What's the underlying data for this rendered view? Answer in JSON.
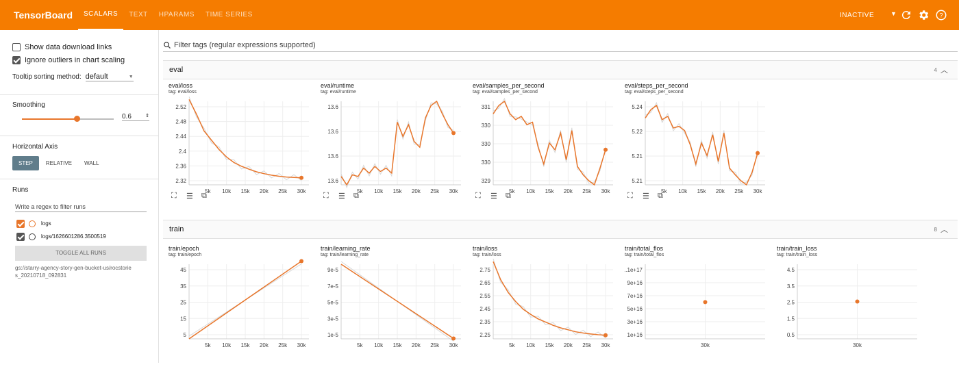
{
  "app": {
    "title": "TensorBoard",
    "status": "INACTIVE"
  },
  "tabs": [
    {
      "label": "SCALARS",
      "active": true
    },
    {
      "label": "TEXT",
      "active": false
    },
    {
      "label": "HPARAMS",
      "active": false
    },
    {
      "label": "TIME SERIES",
      "active": false
    }
  ],
  "sidebar": {
    "show_download": {
      "label": "Show data download links",
      "checked": false
    },
    "ignore_outliers": {
      "label": "Ignore outliers in chart scaling",
      "checked": true
    },
    "tooltip_label": "Tooltip sorting method:",
    "tooltip_value": "default",
    "smoothing_label": "Smoothing",
    "smoothing_value": "0.6",
    "smoothing_fraction": 0.6,
    "axis_label": "Horizontal Axis",
    "axis_options": [
      "STEP",
      "RELATIVE",
      "WALL"
    ],
    "axis_selected": "STEP",
    "runs_label": "Runs",
    "runs_filter_placeholder": "Write a regex to filter runs",
    "runs": [
      {
        "name": "logs",
        "checked": true,
        "color": "#e8762b"
      },
      {
        "name": "logs/1626601286.3500519",
        "checked": true,
        "color": "#424242"
      }
    ],
    "toggle_label": "TOGGLE ALL RUNS",
    "run_path": "gs://starry-agency-story-gen-bucket-us/rocstories_20210718_092831"
  },
  "main": {
    "filter_placeholder": "Filter tags (regular expressions supported)",
    "groups": [
      {
        "name": "eval",
        "count": "4"
      },
      {
        "name": "train",
        "count": "8"
      }
    ]
  },
  "colors": {
    "accent": "#f57c00",
    "series": "#e8762b",
    "raw": "#d7d7d7"
  },
  "chart_data": [
    {
      "type": "line",
      "title": "eval/loss",
      "tag": "tag: eval/loss",
      "xticks": [
        "5k",
        "10k",
        "15k",
        "20k",
        "25k",
        "30k"
      ],
      "yticks": [
        "2.52",
        "2.48",
        "2.44",
        "2.4",
        "2.36",
        "2.32"
      ],
      "xlim": [
        0,
        32000
      ],
      "ylim": [
        2.31,
        2.535
      ],
      "series": [
        {
          "x": [
            0,
            2000,
            4000,
            6000,
            8000,
            10000,
            12000,
            14000,
            16000,
            18000,
            20000,
            22000,
            24000,
            26000,
            28000,
            30000
          ],
          "y": [
            2.54,
            2.5,
            2.455,
            2.43,
            2.405,
            2.385,
            2.37,
            2.36,
            2.352,
            2.345,
            2.34,
            2.336,
            2.333,
            2.331,
            2.33,
            2.329
          ]
        }
      ]
    },
    {
      "type": "line",
      "title": "eval/runtime",
      "tag": "tag: eval/runtime",
      "xticks": [
        "5k",
        "10k",
        "15k",
        "20k",
        "25k",
        "30k"
      ],
      "yticks": [
        "13.6",
        "13.6",
        "13.6",
        "13.6"
      ],
      "xlim": [
        0,
        32000
      ],
      "ylim": [
        0,
        1
      ],
      "series": [
        {
          "x": [
            0,
            1500,
            3000,
            4500,
            6000,
            7500,
            9000,
            10500,
            12000,
            13500,
            15000,
            16500,
            18000,
            19500,
            21000,
            22500,
            24000,
            25500,
            27000,
            28500,
            30000
          ],
          "y": [
            0.1,
            0.0,
            0.12,
            0.1,
            0.2,
            0.14,
            0.22,
            0.16,
            0.2,
            0.14,
            0.75,
            0.58,
            0.72,
            0.52,
            0.45,
            0.8,
            0.95,
            1.0,
            0.85,
            0.72,
            0.62
          ]
        }
      ]
    },
    {
      "type": "line",
      "title": "eval/samples_per_second",
      "tag": "tag: eval/samples_per_second",
      "xticks": [
        "5k",
        "10k",
        "15k",
        "20k",
        "25k",
        "30k"
      ],
      "yticks": [
        "331",
        "330",
        "330",
        "330",
        "329"
      ],
      "xlim": [
        0,
        32000
      ],
      "ylim": [
        0,
        1
      ],
      "series": [
        {
          "x": [
            0,
            1500,
            3000,
            4500,
            6000,
            7500,
            9000,
            10500,
            12000,
            13500,
            15000,
            16500,
            18000,
            19500,
            21000,
            22500,
            24000,
            25500,
            27000,
            28500,
            30000
          ],
          "y": [
            0.85,
            0.95,
            1.0,
            0.85,
            0.78,
            0.82,
            0.72,
            0.75,
            0.45,
            0.25,
            0.5,
            0.42,
            0.62,
            0.3,
            0.65,
            0.22,
            0.12,
            0.05,
            0.0,
            0.2,
            0.42
          ]
        }
      ]
    },
    {
      "type": "line",
      "title": "eval/steps_per_second",
      "tag": "tag: eval/steps_per_second",
      "xticks": [
        "5k",
        "10k",
        "15k",
        "20k",
        "25k",
        "30k"
      ],
      "yticks": [
        "5.24",
        "5.22",
        "5.21",
        "5.21"
      ],
      "xlim": [
        0,
        32000
      ],
      "ylim": [
        0,
        1
      ],
      "series": [
        {
          "x": [
            0,
            1500,
            3000,
            4500,
            6000,
            7500,
            9000,
            10500,
            12000,
            13500,
            15000,
            16500,
            18000,
            19500,
            21000,
            22500,
            24000,
            25500,
            27000,
            28500,
            30000
          ],
          "y": [
            0.8,
            0.9,
            0.95,
            0.78,
            0.82,
            0.68,
            0.7,
            0.65,
            0.48,
            0.25,
            0.5,
            0.35,
            0.6,
            0.28,
            0.62,
            0.2,
            0.12,
            0.05,
            0.0,
            0.15,
            0.38
          ]
        }
      ]
    },
    {
      "type": "line",
      "title": "train/epoch",
      "tag": "tag: train/epoch",
      "xticks": [
        "5k",
        "10k",
        "15k",
        "20k",
        "25k",
        "30k"
      ],
      "yticks": [
        "45",
        "35",
        "25",
        "15",
        "5"
      ],
      "xlim": [
        0,
        32000
      ],
      "ylim": [
        0,
        48
      ],
      "series": [
        {
          "x": [
            0,
            30000
          ],
          "y": [
            0,
            50
          ]
        }
      ]
    },
    {
      "type": "line",
      "title": "train/learning_rate",
      "tag": "tag: train/learning_rate",
      "xticks": [
        "5k",
        "10k",
        "15k",
        "20k",
        "25k",
        "30k"
      ],
      "yticks": [
        "9e-5",
        "7e-5",
        "5e-5",
        "3e-5",
        "1e-5"
      ],
      "xlim": [
        0,
        32000
      ],
      "ylim": [
        0,
        0.0001
      ],
      "series": [
        {
          "x": [
            0,
            30000
          ],
          "y": [
            0.0001,
            5e-07
          ]
        }
      ]
    },
    {
      "type": "line",
      "title": "train/loss",
      "tag": "tag: train/loss",
      "xticks": [
        "5k",
        "10k",
        "15k",
        "20k",
        "25k",
        "30k"
      ],
      "yticks": [
        "2.75",
        "2.65",
        "2.55",
        "2.45",
        "2.35",
        "2.25"
      ],
      "xlim": [
        0,
        32000
      ],
      "ylim": [
        2.22,
        2.8
      ],
      "series": [
        {
          "x": [
            0,
            2000,
            4000,
            6000,
            8000,
            10000,
            12000,
            14000,
            16000,
            18000,
            20000,
            22000,
            24000,
            26000,
            28000,
            30000
          ],
          "y": [
            2.82,
            2.68,
            2.58,
            2.51,
            2.45,
            2.41,
            2.375,
            2.35,
            2.325,
            2.305,
            2.29,
            2.275,
            2.265,
            2.258,
            2.252,
            2.248
          ]
        }
      ]
    },
    {
      "type": "scatter",
      "title": "train/total_flos",
      "tag": "tag: train/total_flos",
      "xticks": [
        "30k"
      ],
      "yticks": [
        "1.1e+17",
        "9e+16",
        "7e+16",
        "5e+16",
        "3e+16",
        "1e+16"
      ],
      "xlim": [
        0,
        1
      ],
      "ylim": [
        0,
        1.2e+17
      ],
      "series": [
        {
          "x": [
            0.5
          ],
          "y": [
            5.9e+16
          ]
        }
      ]
    },
    {
      "type": "scatter",
      "title": "train/train_loss",
      "tag": "tag: train/train_loss",
      "xticks": [
        "30k"
      ],
      "yticks": [
        "4.5",
        "3.5",
        "2.5",
        "1.5",
        "0.5"
      ],
      "xlim": [
        0,
        1
      ],
      "ylim": [
        0,
        4.8
      ],
      "series": [
        {
          "x": [
            0.5
          ],
          "y": [
            2.4
          ]
        }
      ]
    }
  ]
}
